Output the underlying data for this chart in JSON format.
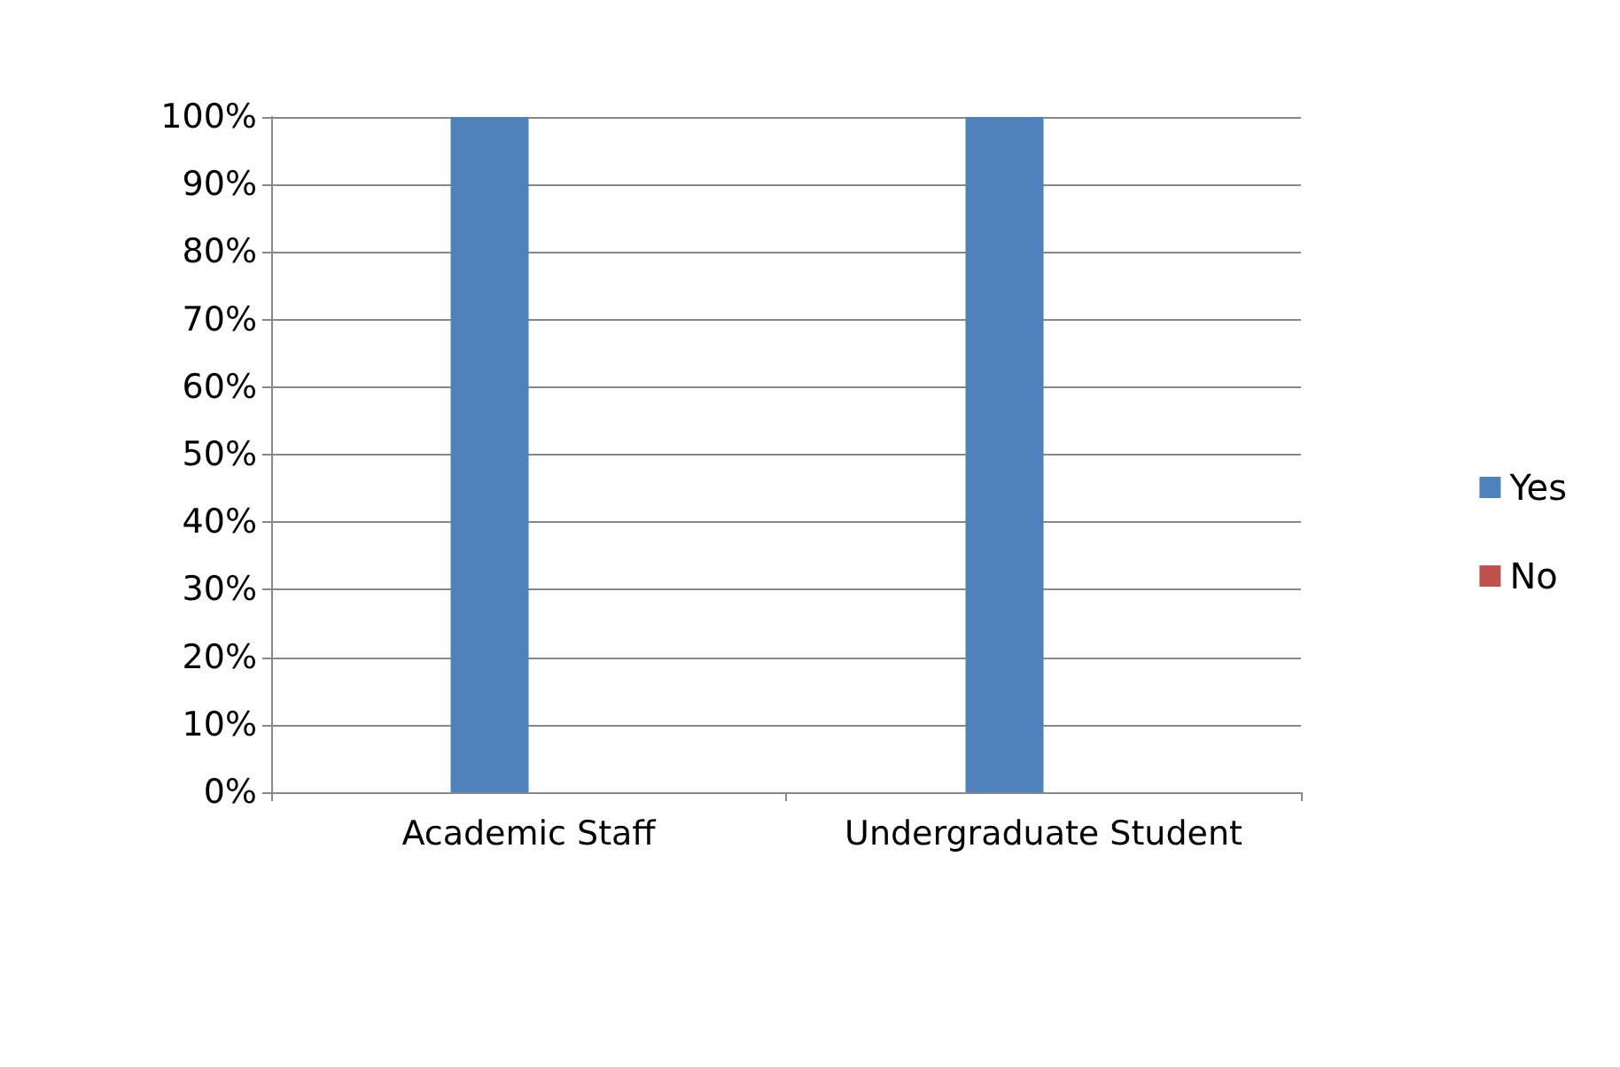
{
  "chart_data": {
    "type": "bar",
    "categories": [
      "Academic Staff",
      "Undergraduate Student"
    ],
    "series": [
      {
        "name": "Yes",
        "color": "#4f81bd",
        "values": [
          100,
          100
        ]
      },
      {
        "name": "No",
        "color": "#c0504d",
        "values": [
          0,
          0
        ]
      }
    ],
    "ylim": [
      0,
      100
    ],
    "yticks": [
      {
        "value": 0,
        "label": "0%"
      },
      {
        "value": 10,
        "label": "10%"
      },
      {
        "value": 20,
        "label": "20%"
      },
      {
        "value": 30,
        "label": "30%"
      },
      {
        "value": 40,
        "label": "40%"
      },
      {
        "value": 50,
        "label": "50%"
      },
      {
        "value": 60,
        "label": "60%"
      },
      {
        "value": 70,
        "label": "70%"
      },
      {
        "value": 80,
        "label": "80%"
      },
      {
        "value": 90,
        "label": "90%"
      },
      {
        "value": 100,
        "label": "100%"
      }
    ],
    "grid": "y",
    "legend": "right"
  }
}
